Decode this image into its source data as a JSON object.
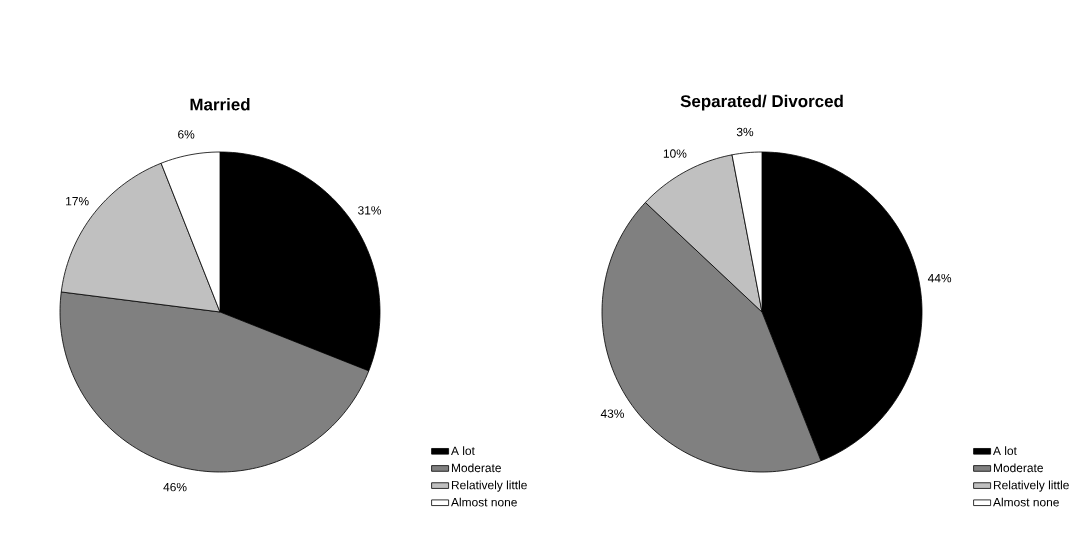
{
  "chart_data": [
    {
      "type": "pie",
      "title": "Married",
      "categories": [
        "A lot",
        "Moderate",
        "Relatively little",
        "Almost none"
      ],
      "values": [
        31,
        46,
        17,
        6
      ],
      "colors": [
        "#000000",
        "#808080",
        "#c0c0c0",
        "#ffffff"
      ],
      "value_labels": [
        "31%",
        "46%",
        "17%",
        "6%"
      ],
      "legend": "bottom right"
    },
    {
      "type": "pie",
      "title": "Separated/ Divorced",
      "categories": [
        "A lot",
        "Moderate",
        "Relatively little",
        "Almost none"
      ],
      "values": [
        44,
        43,
        10,
        3
      ],
      "colors": [
        "#000000",
        "#808080",
        "#c0c0c0",
        "#ffffff"
      ],
      "value_labels": [
        "44%",
        "43%",
        "10%",
        "3%"
      ],
      "legend": "bottom right"
    }
  ]
}
